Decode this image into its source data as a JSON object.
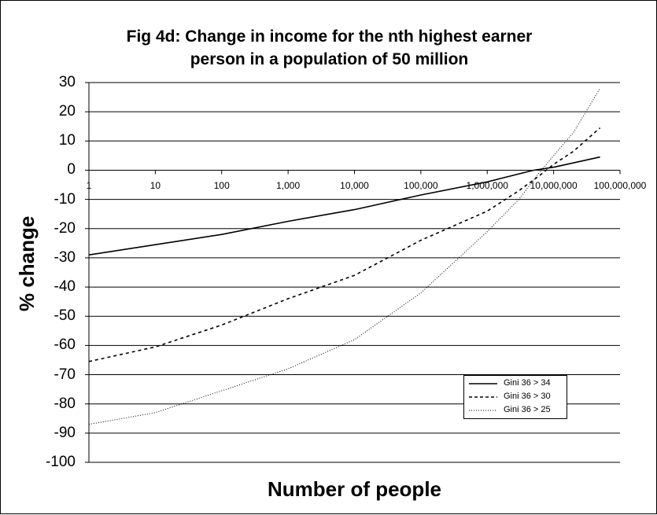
{
  "chart_data": {
    "type": "line",
    "title_lines": [
      "Fig 4d: Change in income for the nth highest earner",
      "person in a population of 50 million"
    ],
    "xlabel": "Number of people",
    "ylabel": "% change",
    "x_scale": "log",
    "x_ticks": [
      "1",
      "10",
      "100",
      "1,000",
      "10,000",
      "100,000",
      "1,000,000",
      "10,000,000",
      "100,000,000"
    ],
    "y_ticks": [
      "30",
      "20",
      "10",
      "0",
      "-10",
      "-20",
      "-30",
      "-40",
      "-50",
      "-60",
      "-70",
      "-80",
      "-90",
      "-100"
    ],
    "xlim": [
      1,
      100000000
    ],
    "ylim": [
      -100,
      30
    ],
    "grid": "horizontal",
    "legend_position": "bottom-right",
    "series": [
      {
        "name": "Gini 36 > 34",
        "style": "solid",
        "x": [
          1,
          10,
          100,
          1000,
          10000,
          100000,
          1000000,
          5000000,
          10000000,
          50000000
        ],
        "y": [
          -29,
          -25.5,
          -22,
          -17.5,
          -13.5,
          -8.5,
          -4,
          0,
          1,
          4.5
        ]
      },
      {
        "name": "Gini 36 > 30",
        "style": "dashed",
        "x": [
          1,
          10,
          100,
          1000,
          10000,
          100000,
          1000000,
          3000000,
          6000000,
          10000000,
          20000000,
          50000000
        ],
        "y": [
          -65.5,
          -60.5,
          -53,
          -44,
          -36,
          -24,
          -14,
          -7,
          -2,
          2,
          6.5,
          14.5
        ]
      },
      {
        "name": "Gini 36 > 25",
        "style": "dotted",
        "x": [
          1,
          10,
          100,
          1000,
          10000,
          100000,
          1000000,
          3000000,
          6000000,
          10000000,
          20000000,
          50000000
        ],
        "y": [
          -87,
          -83,
          -75.5,
          -68,
          -58,
          -42,
          -21,
          -10,
          -1,
          5,
          13,
          28
        ]
      }
    ]
  }
}
